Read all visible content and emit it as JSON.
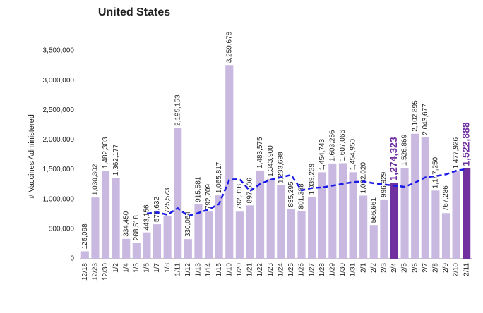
{
  "chart_data": {
    "type": "bar",
    "title": "United States",
    "y_label": "# Vaccines Administered",
    "categories": [
      "12/18",
      "12/23",
      "12/30",
      "1/2",
      "1/4",
      "1/5",
      "1/6",
      "1/7",
      "1/8",
      "1/11",
      "1/12",
      "1/13",
      "1/14",
      "1/15",
      "1/19",
      "1/20",
      "1/21",
      "1/22",
      "1/23",
      "1/24",
      "1/25",
      "1/26",
      "1/27",
      "1/28",
      "1/29",
      "1/30",
      "1/31",
      "2/1",
      "2/2",
      "2/3",
      "2/4",
      "2/5",
      "2/6",
      "2/7",
      "2/8",
      "2/9",
      "2/10",
      "2/11"
    ],
    "values": [
      125098,
      1030302,
      1482303,
      1362177,
      334450,
      268518,
      443156,
      579632,
      725573,
      2195153,
      330064,
      915581,
      792709,
      1065817,
      3259678,
      792318,
      897506,
      1483575,
      1343900,
      1233698,
      835295,
      801388,
      1039239,
      1454743,
      1603256,
      1607066,
      1454950,
      1062020,
      566661,
      996929,
      1274323,
      1526869,
      2102895,
      2043677,
      1147250,
      767286,
      1477926,
      1522888
    ],
    "value_labels": [
      "125,098",
      "1,030,302",
      "1,482,303",
      "1,362,177",
      "334,450",
      "268,518",
      "443,156",
      "579,632",
      "725,573",
      "2,195,153",
      "330,064",
      "915,581",
      "792,709",
      "1,065,817",
      "3,259,678",
      "792,318",
      "897,506",
      "1,483,575",
      "1,343,900",
      "1,233,698",
      "835,295",
      "801,388",
      "1,039,239",
      "1,454,743",
      "1,603,256",
      "1,607,066",
      "1,454,950",
      "1,062,020",
      "566,661",
      "996,929",
      "1,274,323",
      "1,526,869",
      "2,102,895",
      "2,043,677",
      "1,147,250",
      "767,286",
      "1,477,926",
      "1,522,888"
    ],
    "color": "#c9b8e0",
    "highlight_color": "#7030a0",
    "highlight": [
      false,
      false,
      false,
      false,
      false,
      false,
      false,
      false,
      false,
      false,
      false,
      false,
      false,
      false,
      false,
      false,
      false,
      false,
      false,
      false,
      false,
      false,
      false,
      false,
      false,
      false,
      false,
      false,
      false,
      false,
      true,
      false,
      false,
      false,
      false,
      false,
      false,
      true
    ],
    "line": {
      "color": "#1a1ae6",
      "dashed": true,
      "values": [
        null,
        null,
        null,
        null,
        null,
        null,
        760000,
        780000,
        740000,
        850000,
        720000,
        770000,
        830000,
        920000,
        1330000,
        1340000,
        1140000,
        1260000,
        1330000,
        1370000,
        1410000,
        1150000,
        1190000,
        1200000,
        1230000,
        1260000,
        1290000,
        1300000,
        1270000,
        1250000,
        1230000,
        1210000,
        1280000,
        1370000,
        1390000,
        1420000,
        1480000,
        1510000
      ]
    },
    "ylim": [
      0,
      3500000
    ],
    "yticks": [
      0,
      {
        "value": 500000,
        "label": "500,000"
      },
      {
        "value": 1000000,
        "label": "1,000,000"
      },
      {
        "value": 1500000,
        "label": "1,500,000"
      },
      {
        "value": 2000000,
        "label": "2,000,000"
      },
      {
        "value": 2500000,
        "label": "2,500,000"
      },
      {
        "value": 3000000,
        "label": "3,000,000"
      },
      {
        "value": 3500000,
        "label": "3,500,000"
      }
    ],
    "grid": false
  }
}
